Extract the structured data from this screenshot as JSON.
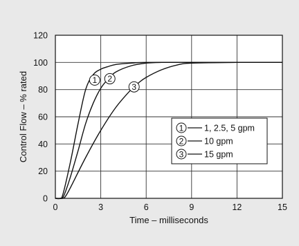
{
  "chart_data": {
    "type": "line",
    "xlabel": "Time – milliseconds",
    "ylabel": "Control Flow – % rated",
    "xlim": [
      0,
      15
    ],
    "ylim": [
      0,
      120
    ],
    "xticks": [
      0,
      3,
      6,
      9,
      12,
      15
    ],
    "yticks": [
      0,
      20,
      40,
      60,
      80,
      100,
      120
    ],
    "grid": true,
    "legend_position": "right-middle",
    "series": [
      {
        "marker": "①",
        "label": "1, 2.5, 5 gpm",
        "x": [
          0,
          0.3,
          0.5,
          1.0,
          1.5,
          2.0,
          2.5,
          3.0,
          3.5,
          4.0,
          5.0,
          6.0,
          9.0,
          12.0,
          15.0
        ],
        "y": [
          0,
          0,
          3,
          27,
          55,
          80,
          91,
          95,
          97,
          98.5,
          99.5,
          100,
          100,
          100,
          100
        ],
        "marker_at": [
          2.6,
          87
        ]
      },
      {
        "marker": "②",
        "label": "10 gpm",
        "x": [
          0,
          0.4,
          0.6,
          1.0,
          1.5,
          2.0,
          2.5,
          3.0,
          3.5,
          4.0,
          5.0,
          6.0,
          7.0,
          9.0,
          12.0,
          15.0
        ],
        "y": [
          0,
          0,
          3,
          16,
          35,
          55,
          70,
          81,
          88,
          93,
          97.5,
          99.5,
          100,
          100,
          100,
          100
        ],
        "marker_at": [
          3.6,
          88
        ]
      },
      {
        "marker": "③",
        "label": "15 gpm",
        "x": [
          0,
          0.5,
          0.7,
          1.0,
          2.0,
          3.0,
          4.0,
          5.0,
          5.5,
          6.0,
          7.0,
          8.0,
          9.0,
          12.0,
          15.0
        ],
        "y": [
          0,
          0,
          2,
          8,
          30,
          50,
          67,
          80,
          85,
          89,
          94.5,
          98,
          99.5,
          100,
          100
        ],
        "marker_at": [
          5.2,
          82
        ]
      }
    ]
  }
}
